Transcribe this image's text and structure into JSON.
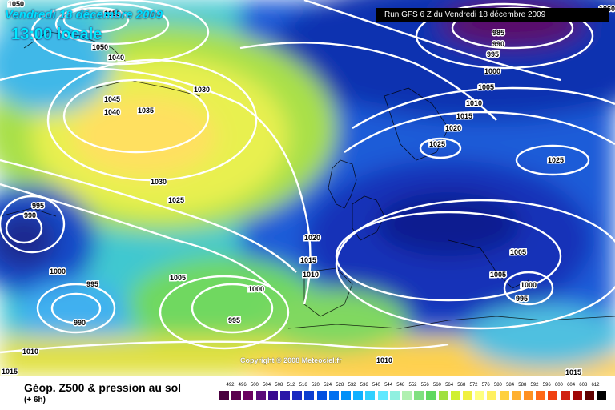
{
  "header": {
    "date": "Vendredi 18 décembre 2009",
    "local_time": "13:00 locale",
    "run_info": "Run GFS 6 Z du Vendredi 18 décembre 2009"
  },
  "copyright": "Copyright © 2008 Meteociel.fr",
  "footer": {
    "title": "Géop. Z500 & pression au sol",
    "subtitle": "(+ 6h)"
  },
  "scale": {
    "ticks": [
      "492",
      "496",
      "500",
      "504",
      "508",
      "512",
      "516",
      "520",
      "524",
      "528",
      "532",
      "536",
      "540",
      "544",
      "548",
      "552",
      "556",
      "560",
      "564",
      "568",
      "572",
      "576",
      "580",
      "584",
      "588",
      "592",
      "596",
      "600",
      "604",
      "608",
      "612"
    ],
    "colors": [
      "#4a0040",
      "#5a004f",
      "#6a0060",
      "#5a0a7a",
      "#3a0a90",
      "#2a16a8",
      "#1a2ac0",
      "#0c3ed0",
      "#0050e0",
      "#0070f0",
      "#0090f8",
      "#10b0ff",
      "#30d0ff",
      "#60e8ff",
      "#90f0e0",
      "#b0f0b0",
      "#80e080",
      "#60d860",
      "#a0e040",
      "#d0f030",
      "#f0f040",
      "#ffff80",
      "#fff060",
      "#ffd040",
      "#ffb030",
      "#ff9020",
      "#ff6818",
      "#f04010",
      "#d02010",
      "#a00808",
      "#600000",
      "#000000"
    ]
  },
  "isobar_labels": [
    {
      "text": "1050"
    },
    {
      "text": "1055"
    },
    {
      "text": "1050"
    },
    {
      "text": "1040"
    },
    {
      "text": "1045"
    },
    {
      "text": "1040"
    },
    {
      "text": "1035"
    },
    {
      "text": "1030"
    },
    {
      "text": "1030"
    },
    {
      "text": "1025"
    },
    {
      "text": "995"
    },
    {
      "text": "990"
    },
    {
      "text": "1000"
    },
    {
      "text": "995"
    },
    {
      "text": "990"
    },
    {
      "text": "1005"
    },
    {
      "text": "1000"
    },
    {
      "text": "995"
    },
    {
      "text": "1010"
    },
    {
      "text": "1015"
    },
    {
      "text": "1020"
    },
    {
      "text": "1015"
    },
    {
      "text": "1010"
    },
    {
      "text": "1010"
    },
    {
      "text": "985"
    },
    {
      "text": "990"
    },
    {
      "text": "995"
    },
    {
      "text": "1000"
    },
    {
      "text": "1005"
    },
    {
      "text": "1010"
    },
    {
      "text": "1015"
    },
    {
      "text": "1020"
    },
    {
      "text": "1025"
    },
    {
      "text": "1025"
    },
    {
      "text": "1005"
    },
    {
      "text": "1005"
    },
    {
      "text": "1000"
    },
    {
      "text": "995"
    },
    {
      "text": "1015"
    },
    {
      "text": "1060"
    }
  ]
}
